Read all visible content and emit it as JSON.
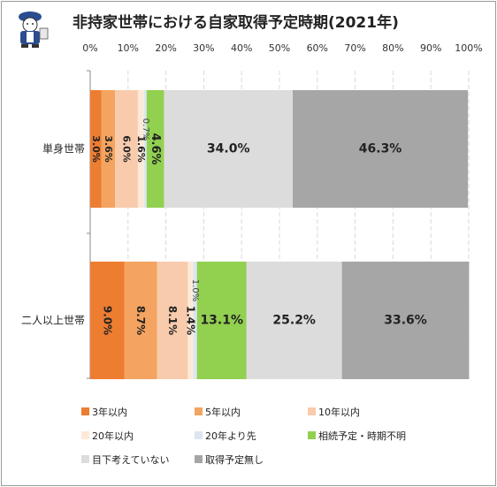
{
  "chart_data": {
    "type": "bar",
    "orientation": "horizontal",
    "stacked": true,
    "title": "非持家世帯における自家取得予定時期(2021年)",
    "xlim": [
      0,
      100
    ],
    "x_ticks": [
      "0%",
      "10%",
      "20%",
      "30%",
      "40%",
      "50%",
      "60%",
      "70%",
      "80%",
      "90%",
      "100%"
    ],
    "categories": [
      "単身世帯",
      "二人以上世帯"
    ],
    "legend_position": "bottom",
    "series": [
      {
        "name": "3年以内",
        "color": "#ed7d31",
        "values": [
          3.0,
          9.0
        ],
        "labels": [
          "3.0%",
          "9.0%"
        ]
      },
      {
        "name": "5年以内",
        "color": "#f4a460",
        "values": [
          3.6,
          8.7
        ],
        "labels": [
          "3.6%",
          "8.7%"
        ]
      },
      {
        "name": "10年以内",
        "color": "#f8cbad",
        "values": [
          6.0,
          8.1
        ],
        "labels": [
          "6.0%",
          "8.1%"
        ]
      },
      {
        "name": "20年以内",
        "color": "#fde9d9",
        "values": [
          1.6,
          1.4
        ],
        "labels": [
          "1.6%",
          "1.4%"
        ]
      },
      {
        "name": "20年より先",
        "color": "#dce6f1",
        "values": [
          0.7,
          1.0
        ],
        "labels": [
          "0.7%",
          "1.0%"
        ]
      },
      {
        "name": "相続予定・時期不明",
        "color": "#92d050",
        "values": [
          4.6,
          13.1
        ],
        "labels": [
          "4.6%",
          "13.1%"
        ]
      },
      {
        "name": "目下考えていない",
        "color": "#dcdcdc",
        "values": [
          34.0,
          25.2
        ],
        "labels": [
          "34.0%",
          "25.2%"
        ]
      },
      {
        "name": "取得予定無し",
        "color": "#a6a6a6",
        "values": [
          46.3,
          33.6
        ],
        "labels": [
          "46.3%",
          "33.6%"
        ]
      }
    ]
  }
}
